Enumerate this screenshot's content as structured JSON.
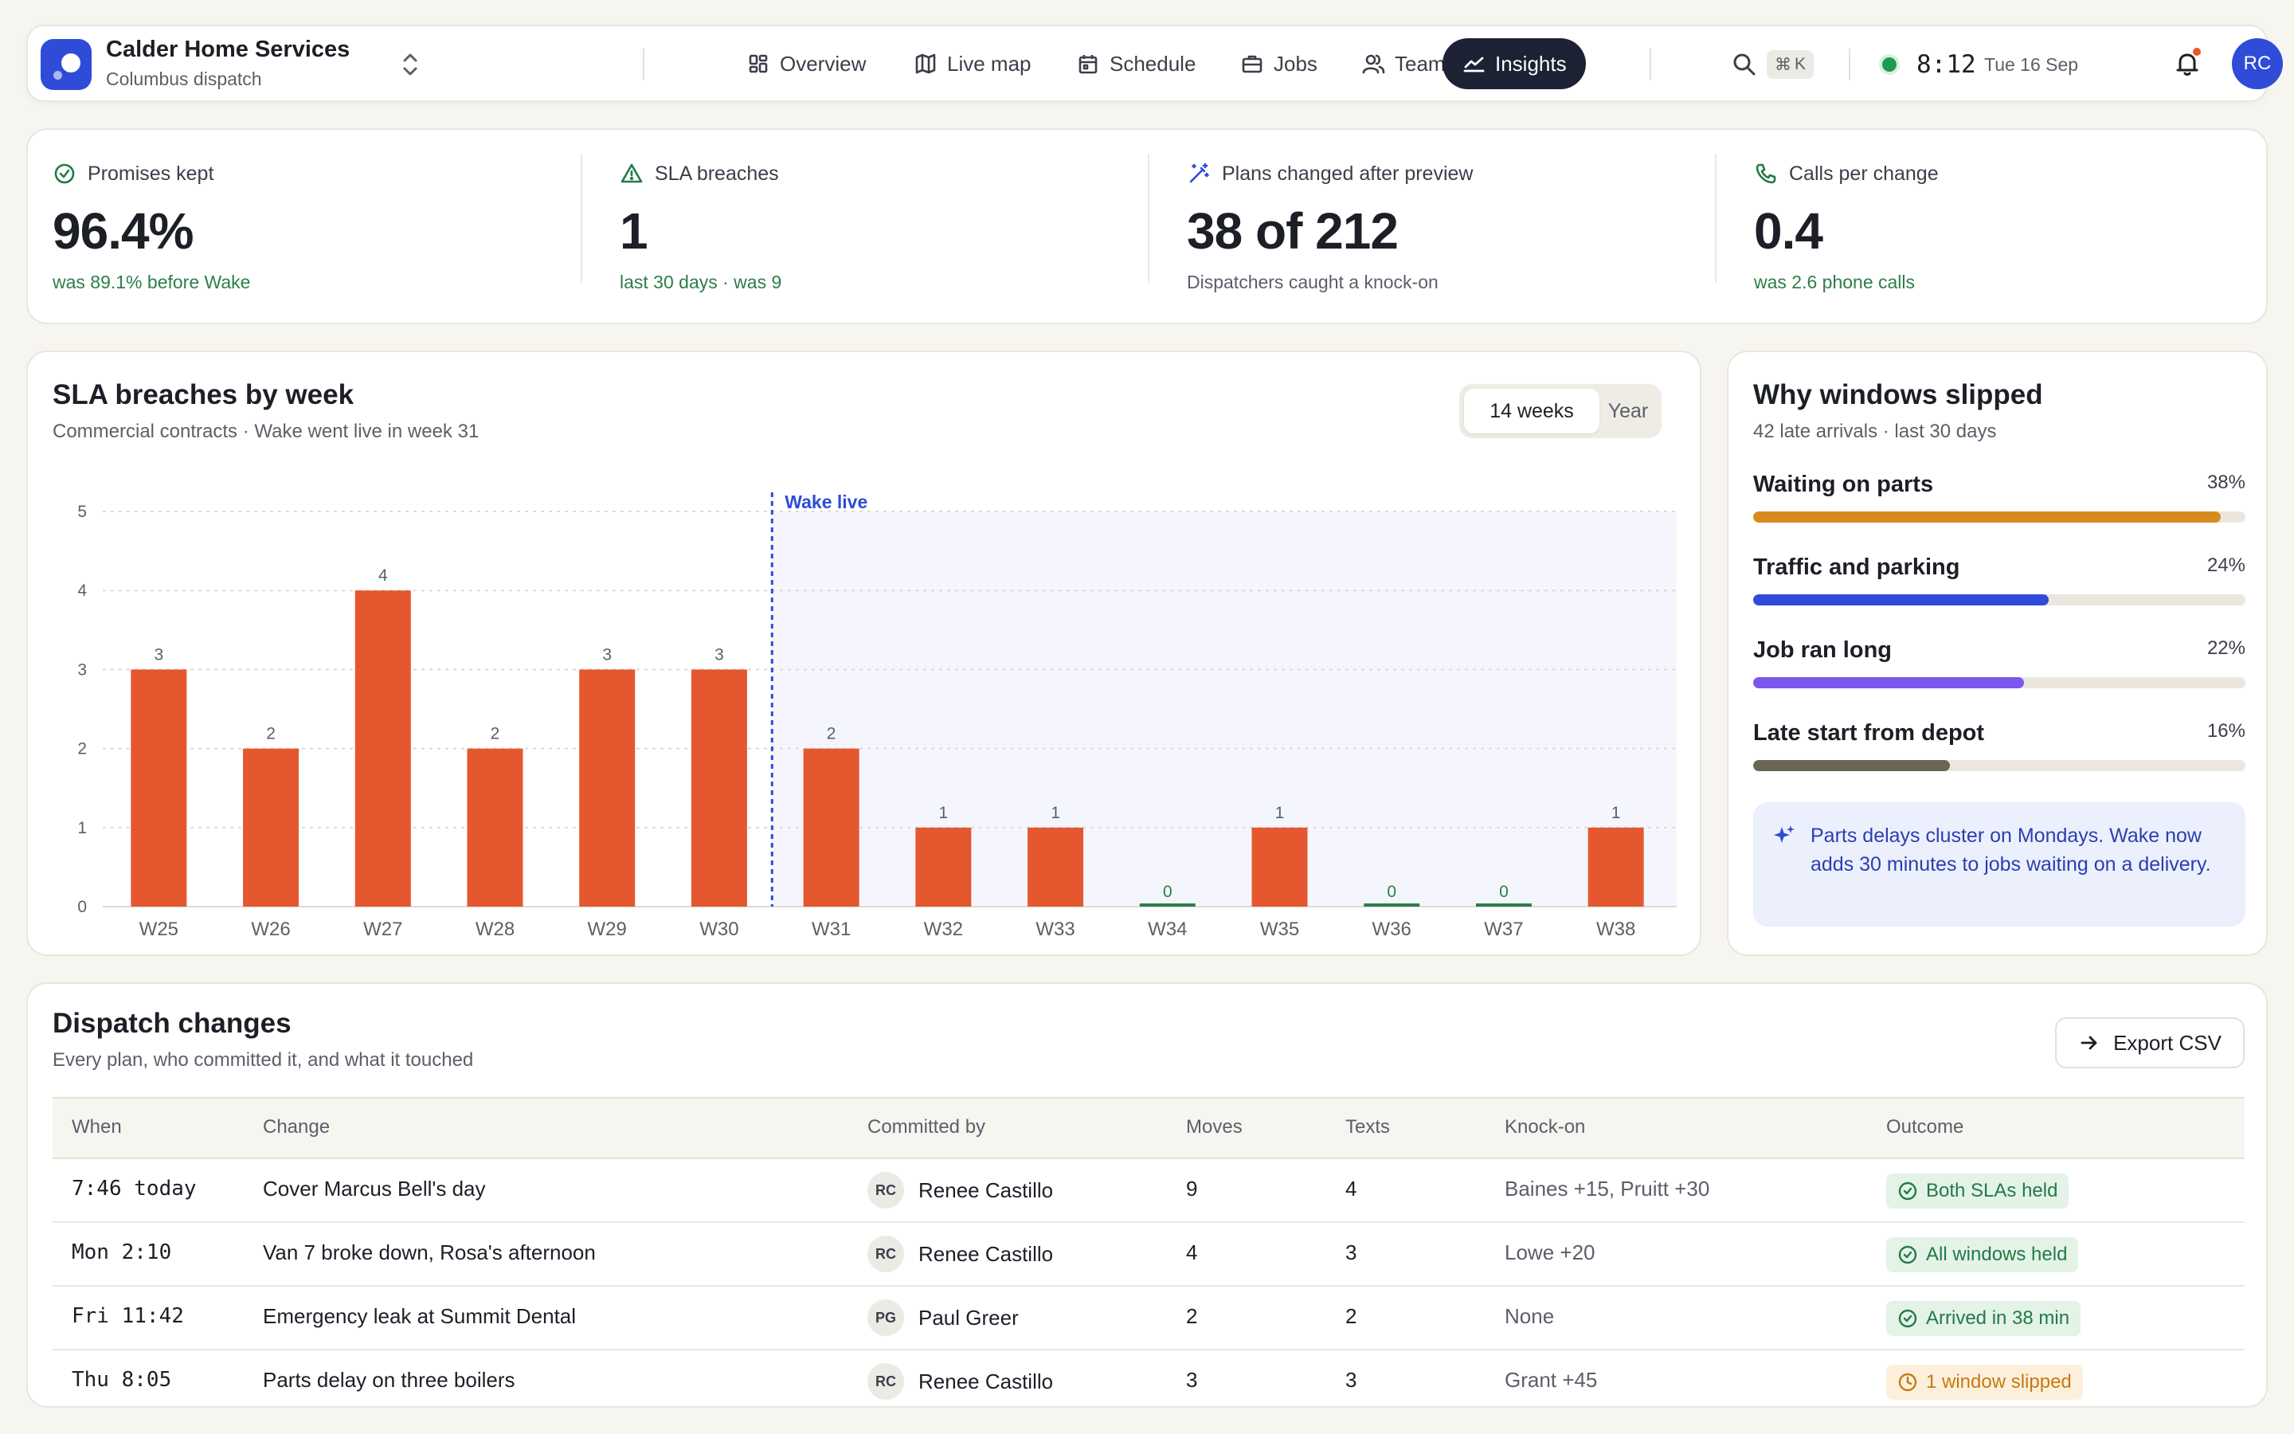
{
  "header": {
    "org_name": "Calder Home Services",
    "org_sub": "Columbus dispatch",
    "nav": [
      {
        "label": "Overview",
        "icon": "grid-icon"
      },
      {
        "label": "Live map",
        "icon": "map-icon"
      },
      {
        "label": "Schedule",
        "icon": "calendar-icon"
      },
      {
        "label": "Jobs",
        "icon": "briefcase-icon"
      },
      {
        "label": "Team",
        "icon": "users-icon"
      },
      {
        "label": "Insights",
        "icon": "trend-icon",
        "active": true
      }
    ],
    "shortcut_key": "K",
    "time": "8:12",
    "date": "Tue 16 Sep",
    "user_initials": "RC"
  },
  "kpis": [
    {
      "label": "Promises kept",
      "value": "96.4%",
      "note": "was 89.1% before Wake",
      "icon": "check-circle-icon"
    },
    {
      "label": "SLA breaches",
      "value": "1",
      "note": "last 30 days · was 9",
      "icon": "warning-triangle-icon"
    },
    {
      "label": "Plans changed after preview",
      "value": "38 of 212",
      "note": "Dispatchers caught a knock-on",
      "icon": "magic-wand-icon"
    },
    {
      "label": "Calls per change",
      "value": "0.4",
      "note": "was 2.6 phone calls",
      "icon": "phone-icon"
    }
  ],
  "sla_chart": {
    "title": "SLA breaches by week",
    "subtitle": "Commercial contracts · Wake went live in week 31",
    "toggle": {
      "active": "14 weeks",
      "inactive": "Year"
    }
  },
  "chart_data": {
    "type": "bar",
    "categories": [
      "W25",
      "W26",
      "W27",
      "W28",
      "W29",
      "W30",
      "W31",
      "W32",
      "W33",
      "W34",
      "W35",
      "W36",
      "W37",
      "W38"
    ],
    "values": [
      3,
      2,
      4,
      2,
      3,
      3,
      2,
      1,
      1,
      0,
      1,
      0,
      0,
      1
    ],
    "ylim": [
      0,
      5
    ],
    "yticks": [
      0,
      1,
      2,
      3,
      4,
      5
    ],
    "annotation": {
      "label": "Wake live",
      "at_category": "W31"
    },
    "grid": true,
    "colors": {
      "bar": "#e5572e",
      "zero": "#2f7d4a",
      "marker": "#2f4bd8",
      "shade": "#f5f6fd"
    }
  },
  "reasons": {
    "title": "Why windows slipped",
    "subtitle": "42 late arrivals · last 30 days",
    "items": [
      {
        "label": "Waiting on parts",
        "pct_label": "38%",
        "fraction": 0.95,
        "color": "#d98a1f"
      },
      {
        "label": "Traffic and parking",
        "pct_label": "24%",
        "fraction": 0.6,
        "color": "#2f4bd8"
      },
      {
        "label": "Job ran long",
        "pct_label": "22%",
        "fraction": 0.55,
        "color": "#7c56ee"
      },
      {
        "label": "Late start from depot",
        "pct_label": "16%",
        "fraction": 0.4,
        "color": "#6b6557"
      }
    ],
    "insight": "Parts delays cluster on Mondays. Wake now adds 30 minutes to jobs waiting on a delivery."
  },
  "changes": {
    "title": "Dispatch changes",
    "subtitle": "Every plan, who committed it, and what it touched",
    "export_label": "Export CSV",
    "columns": [
      "When",
      "Change",
      "Committed by",
      "Moves",
      "Texts",
      "Knock-on",
      "Outcome"
    ],
    "rows": [
      {
        "when": "7:46 today",
        "change": "Cover Marcus Bell's day",
        "initials": "RC",
        "by": "Renee Castillo",
        "moves": "9",
        "texts": "4",
        "knock_on": "Baines +15, Pruitt +30",
        "outcome": "Both SLAs held",
        "status": "ok"
      },
      {
        "when": "Mon 2:10",
        "change": "Van 7 broke down, Rosa's afternoon",
        "initials": "RC",
        "by": "Renee Castillo",
        "moves": "4",
        "texts": "3",
        "knock_on": "Lowe +20",
        "outcome": "All windows held",
        "status": "ok"
      },
      {
        "when": "Fri 11:42",
        "change": "Emergency leak at Summit Dental",
        "initials": "PG",
        "by": "Paul Greer",
        "moves": "2",
        "texts": "2",
        "knock_on": "None",
        "outcome": "Arrived in 38 min",
        "status": "ok"
      },
      {
        "when": "Thu 8:05",
        "change": "Parts delay on three boilers",
        "initials": "RC",
        "by": "Renee Castillo",
        "moves": "3",
        "texts": "3",
        "knock_on": "Grant +45",
        "outcome": "1 window slipped",
        "status": "warn"
      }
    ]
  }
}
